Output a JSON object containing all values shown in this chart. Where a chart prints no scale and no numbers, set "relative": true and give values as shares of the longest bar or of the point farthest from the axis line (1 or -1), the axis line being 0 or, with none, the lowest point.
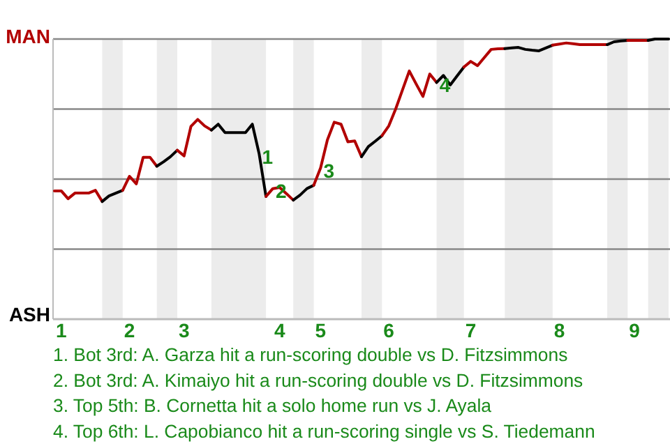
{
  "chart_data": {
    "type": "line",
    "relative": true,
    "grid": "y",
    "categories": [
      null,
      "1",
      null,
      null,
      null,
      null,
      null,
      null,
      null,
      null,
      null,
      "2",
      null,
      null,
      null,
      null,
      null,
      null,
      null,
      "3",
      null,
      null,
      null,
      null,
      null,
      null,
      null,
      null,
      null,
      null,
      null,
      null,
      null,
      "4",
      null,
      null,
      null,
      null,
      null,
      "5",
      null,
      null,
      null,
      null,
      null,
      null,
      null,
      null,
      null,
      "6",
      null,
      null,
      null,
      null,
      null,
      null,
      null,
      null,
      null,
      null,
      null,
      "7",
      null,
      null,
      null,
      null,
      null,
      null,
      null,
      null,
      null,
      null,
      null,
      null,
      "8",
      null,
      null,
      null,
      null,
      null,
      null,
      null,
      null,
      null,
      null,
      "9",
      null,
      null,
      null,
      null,
      null
    ],
    "series": [
      {
        "color": "#b20000",
        "values": [
          0.458,
          0.458,
          0.43,
          0.45,
          0.45,
          0.45,
          0.46,
          0.42,
          null,
          null,
          null,
          null,
          null,
          null,
          null,
          null,
          null,
          null,
          null,
          null,
          null,
          null,
          null,
          null,
          null,
          null,
          null,
          null,
          null,
          null,
          null,
          null,
          null,
          null,
          null,
          null,
          null,
          null,
          null,
          null,
          null,
          null,
          null,
          null,
          null,
          null,
          null,
          null,
          null,
          null,
          null,
          null,
          null,
          null,
          null,
          null,
          null,
          null,
          null,
          null,
          null,
          null,
          null,
          null,
          null,
          null,
          null,
          null,
          null,
          null,
          null,
          null,
          null,
          null,
          null,
          null,
          null,
          null,
          null,
          null,
          null,
          null,
          null,
          null,
          null,
          null,
          null,
          null,
          null,
          null,
          null
        ]
      },
      {
        "color": "#000000",
        "values": [
          null,
          null,
          null,
          null,
          null,
          null,
          null,
          0.42,
          0.44,
          0.45,
          0.46,
          null,
          null,
          null,
          null,
          null,
          null,
          null,
          null,
          null,
          null,
          null,
          null,
          null,
          null,
          null,
          null,
          null,
          null,
          null,
          null,
          null,
          null,
          null,
          null,
          null,
          null,
          null,
          null,
          null,
          null,
          null,
          null,
          null,
          null,
          null,
          null,
          null,
          null,
          null,
          null,
          null,
          null,
          null,
          null,
          null,
          null,
          null,
          null,
          null,
          null,
          null,
          null,
          null,
          null,
          null,
          null,
          null,
          null,
          null,
          null,
          null,
          null,
          null,
          null,
          null,
          null,
          null,
          null,
          null,
          null,
          null,
          null,
          null,
          null,
          null,
          null,
          null,
          null,
          null,
          null
        ]
      },
      {
        "color": "#b20000",
        "values": [
          null,
          null,
          null,
          null,
          null,
          null,
          null,
          null,
          null,
          null,
          0.46,
          0.51,
          0.483,
          0.578,
          0.578,
          0.546,
          null,
          null,
          null,
          null,
          null,
          null,
          null,
          null,
          null,
          null,
          null,
          null,
          null,
          null,
          null,
          null,
          null,
          null,
          null,
          null,
          null,
          null,
          null,
          null,
          null,
          null,
          null,
          null,
          null,
          null,
          null,
          null,
          null,
          null,
          null,
          null,
          null,
          null,
          null,
          null,
          null,
          null,
          null,
          null,
          null,
          null,
          null,
          null,
          null,
          null,
          null,
          null,
          null,
          null,
          null,
          null,
          null,
          null,
          null,
          null,
          null,
          null,
          null,
          null,
          null,
          null,
          null,
          null,
          null,
          null,
          null,
          null,
          null,
          null,
          null
        ]
      },
      {
        "color": "#000000",
        "values": [
          null,
          null,
          null,
          null,
          null,
          null,
          null,
          null,
          null,
          null,
          null,
          null,
          null,
          null,
          null,
          0.546,
          0.562,
          0.58,
          0.603,
          null,
          null,
          null,
          null,
          null,
          null,
          null,
          null,
          null,
          null,
          null,
          null,
          null,
          null,
          null,
          null,
          null,
          null,
          null,
          null,
          null,
          null,
          null,
          null,
          null,
          null,
          null,
          null,
          null,
          null,
          null,
          null,
          null,
          null,
          null,
          null,
          null,
          null,
          null,
          null,
          null,
          null,
          null,
          null,
          null,
          null,
          null,
          null,
          null,
          null,
          null,
          null,
          null,
          null,
          null,
          null,
          null,
          null,
          null,
          null,
          null,
          null,
          null,
          null,
          null,
          null,
          null,
          null,
          null,
          null,
          null,
          null
        ]
      },
      {
        "color": "#b20000",
        "values": [
          null,
          null,
          null,
          null,
          null,
          null,
          null,
          null,
          null,
          null,
          null,
          null,
          null,
          null,
          null,
          null,
          null,
          null,
          0.603,
          0.583,
          0.688,
          0.713,
          0.69,
          0.675,
          null,
          null,
          null,
          null,
          null,
          null,
          null,
          null,
          null,
          null,
          null,
          null,
          null,
          null,
          null,
          null,
          null,
          null,
          null,
          null,
          null,
          null,
          null,
          null,
          null,
          null,
          null,
          null,
          null,
          null,
          null,
          null,
          null,
          null,
          null,
          null,
          null,
          null,
          null,
          null,
          null,
          null,
          null,
          null,
          null,
          null,
          null,
          null,
          null,
          null,
          null,
          null,
          null,
          null,
          null,
          null,
          null,
          null,
          null,
          null,
          null,
          null,
          null,
          null,
          null,
          null,
          null
        ]
      },
      {
        "color": "#000000",
        "values": [
          null,
          null,
          null,
          null,
          null,
          null,
          null,
          null,
          null,
          null,
          null,
          null,
          null,
          null,
          null,
          null,
          null,
          null,
          null,
          null,
          null,
          null,
          null,
          0.675,
          0.696,
          0.666,
          0.666,
          0.666,
          0.666,
          0.696,
          0.59,
          0.438,
          null,
          null,
          null,
          null,
          null,
          null,
          null,
          null,
          null,
          null,
          null,
          null,
          null,
          null,
          null,
          null,
          null,
          null,
          null,
          null,
          null,
          null,
          null,
          null,
          null,
          null,
          null,
          null,
          null,
          null,
          null,
          null,
          null,
          null,
          null,
          null,
          null,
          null,
          null,
          null,
          null,
          null,
          null,
          null,
          null,
          null,
          null,
          null,
          null,
          null,
          null,
          null,
          null,
          null,
          null,
          null,
          null,
          null,
          null
        ]
      },
      {
        "color": "#b20000",
        "values": [
          null,
          null,
          null,
          null,
          null,
          null,
          null,
          null,
          null,
          null,
          null,
          null,
          null,
          null,
          null,
          null,
          null,
          null,
          null,
          null,
          null,
          null,
          null,
          null,
          null,
          null,
          null,
          null,
          null,
          null,
          null,
          0.438,
          0.466,
          0.47,
          0.448,
          0.425,
          null,
          null,
          null,
          null,
          null,
          null,
          null,
          null,
          null,
          null,
          null,
          null,
          null,
          null,
          null,
          null,
          null,
          null,
          null,
          null,
          null,
          null,
          null,
          null,
          null,
          null,
          null,
          null,
          null,
          null,
          null,
          null,
          null,
          null,
          null,
          null,
          null,
          null,
          null,
          null,
          null,
          null,
          null,
          null,
          null,
          null,
          null,
          null,
          null,
          null,
          null,
          null,
          null,
          null,
          null
        ]
      },
      {
        "color": "#000000",
        "values": [
          null,
          null,
          null,
          null,
          null,
          null,
          null,
          null,
          null,
          null,
          null,
          null,
          null,
          null,
          null,
          null,
          null,
          null,
          null,
          null,
          null,
          null,
          null,
          null,
          null,
          null,
          null,
          null,
          null,
          null,
          null,
          null,
          null,
          null,
          null,
          0.425,
          0.443,
          0.466,
          0.478,
          null,
          null,
          null,
          null,
          null,
          null,
          null,
          null,
          null,
          null,
          null,
          null,
          null,
          null,
          null,
          null,
          null,
          null,
          null,
          null,
          null,
          null,
          null,
          null,
          null,
          null,
          null,
          null,
          null,
          null,
          null,
          null,
          null,
          null,
          null,
          null,
          null,
          null,
          null,
          null,
          null,
          null,
          null,
          null,
          null,
          null,
          null,
          null,
          null,
          null,
          null,
          null
        ]
      },
      {
        "color": "#b20000",
        "values": [
          null,
          null,
          null,
          null,
          null,
          null,
          null,
          null,
          null,
          null,
          null,
          null,
          null,
          null,
          null,
          null,
          null,
          null,
          null,
          null,
          null,
          null,
          null,
          null,
          null,
          null,
          null,
          null,
          null,
          null,
          null,
          null,
          null,
          null,
          null,
          null,
          null,
          null,
          0.478,
          0.54,
          0.64,
          0.703,
          0.696,
          0.633,
          0.636,
          0.58,
          null,
          null,
          null,
          null,
          null,
          null,
          null,
          null,
          null,
          null,
          null,
          null,
          null,
          null,
          null,
          null,
          null,
          null,
          null,
          null,
          null,
          null,
          null,
          null,
          null,
          null,
          null,
          null,
          null,
          null,
          null,
          null,
          null,
          null,
          null,
          null,
          null,
          null,
          null,
          null,
          null,
          null,
          null,
          null,
          null
        ]
      },
      {
        "color": "#000000",
        "values": [
          null,
          null,
          null,
          null,
          null,
          null,
          null,
          null,
          null,
          null,
          null,
          null,
          null,
          null,
          null,
          null,
          null,
          null,
          null,
          null,
          null,
          null,
          null,
          null,
          null,
          null,
          null,
          null,
          null,
          null,
          null,
          null,
          null,
          null,
          null,
          null,
          null,
          null,
          null,
          null,
          null,
          null,
          null,
          null,
          null,
          0.58,
          0.616,
          0.635,
          0.655,
          null,
          null,
          null,
          null,
          null,
          null,
          null,
          null,
          null,
          null,
          null,
          null,
          null,
          null,
          null,
          null,
          null,
          null,
          null,
          null,
          null,
          null,
          null,
          null,
          null,
          null,
          null,
          null,
          null,
          null,
          null,
          null,
          null,
          null,
          null,
          null,
          null,
          null,
          null,
          null,
          null,
          null
        ]
      },
      {
        "color": "#b20000",
        "values": [
          null,
          null,
          null,
          null,
          null,
          null,
          null,
          null,
          null,
          null,
          null,
          null,
          null,
          null,
          null,
          null,
          null,
          null,
          null,
          null,
          null,
          null,
          null,
          null,
          null,
          null,
          null,
          null,
          null,
          null,
          null,
          null,
          null,
          null,
          null,
          null,
          null,
          null,
          null,
          null,
          null,
          null,
          null,
          null,
          null,
          null,
          null,
          null,
          0.655,
          0.69,
          0.75,
          0.818,
          0.886,
          0.84,
          0.795,
          0.875,
          0.845,
          null,
          null,
          null,
          null,
          null,
          null,
          null,
          null,
          null,
          null,
          null,
          null,
          null,
          null,
          null,
          null,
          null,
          null,
          null,
          null,
          null,
          null,
          null,
          null,
          null,
          null,
          null,
          null,
          null,
          null,
          null,
          null,
          null,
          null
        ]
      },
      {
        "color": "#000000",
        "values": [
          null,
          null,
          null,
          null,
          null,
          null,
          null,
          null,
          null,
          null,
          null,
          null,
          null,
          null,
          null,
          null,
          null,
          null,
          null,
          null,
          null,
          null,
          null,
          null,
          null,
          null,
          null,
          null,
          null,
          null,
          null,
          null,
          null,
          null,
          null,
          null,
          null,
          null,
          null,
          null,
          null,
          null,
          null,
          null,
          null,
          null,
          null,
          null,
          null,
          null,
          null,
          null,
          null,
          null,
          null,
          null,
          0.845,
          0.87,
          0.836,
          0.868,
          0.9,
          null,
          null,
          null,
          null,
          null,
          null,
          null,
          null,
          null,
          null,
          null,
          null,
          null,
          null,
          null,
          null,
          null,
          null,
          null,
          null,
          null,
          null,
          null,
          null,
          null,
          null,
          null,
          null,
          null,
          null
        ]
      },
      {
        "color": "#b20000",
        "values": [
          null,
          null,
          null,
          null,
          null,
          null,
          null,
          null,
          null,
          null,
          null,
          null,
          null,
          null,
          null,
          null,
          null,
          null,
          null,
          null,
          null,
          null,
          null,
          null,
          null,
          null,
          null,
          null,
          null,
          null,
          null,
          null,
          null,
          null,
          null,
          null,
          null,
          null,
          null,
          null,
          null,
          null,
          null,
          null,
          null,
          null,
          null,
          null,
          null,
          null,
          null,
          null,
          null,
          null,
          null,
          null,
          null,
          null,
          null,
          null,
          0.9,
          0.92,
          0.905,
          0.934,
          0.963,
          0.965,
          0.966,
          null,
          null,
          null,
          null,
          null,
          null,
          null,
          null,
          null,
          null,
          null,
          null,
          null,
          null,
          null,
          null,
          null,
          null,
          null,
          null,
          null,
          null,
          null,
          null
        ]
      },
      {
        "color": "#000000",
        "values": [
          null,
          null,
          null,
          null,
          null,
          null,
          null,
          null,
          null,
          null,
          null,
          null,
          null,
          null,
          null,
          null,
          null,
          null,
          null,
          null,
          null,
          null,
          null,
          null,
          null,
          null,
          null,
          null,
          null,
          null,
          null,
          null,
          null,
          null,
          null,
          null,
          null,
          null,
          null,
          null,
          null,
          null,
          null,
          null,
          null,
          null,
          null,
          null,
          null,
          null,
          null,
          null,
          null,
          null,
          null,
          null,
          null,
          null,
          null,
          null,
          null,
          null,
          null,
          null,
          null,
          null,
          0.966,
          0.968,
          0.97,
          0.963,
          0.96,
          0.958,
          0.968,
          0.978,
          null,
          null,
          null,
          null,
          null,
          null,
          null,
          null,
          null,
          null,
          null,
          null,
          null,
          null,
          null,
          null,
          null
        ]
      },
      {
        "color": "#b20000",
        "values": [
          null,
          null,
          null,
          null,
          null,
          null,
          null,
          null,
          null,
          null,
          null,
          null,
          null,
          null,
          null,
          null,
          null,
          null,
          null,
          null,
          null,
          null,
          null,
          null,
          null,
          null,
          null,
          null,
          null,
          null,
          null,
          null,
          null,
          null,
          null,
          null,
          null,
          null,
          null,
          null,
          null,
          null,
          null,
          null,
          null,
          null,
          null,
          null,
          null,
          null,
          null,
          null,
          null,
          null,
          null,
          null,
          null,
          null,
          null,
          null,
          null,
          null,
          null,
          null,
          null,
          null,
          null,
          null,
          null,
          null,
          null,
          null,
          null,
          0.978,
          0.982,
          0.986,
          0.983,
          0.98,
          0.98,
          0.98,
          0.98,
          0.98,
          null,
          null,
          null,
          null,
          null,
          null,
          null,
          null,
          null
        ]
      },
      {
        "color": "#000000",
        "values": [
          null,
          null,
          null,
          null,
          null,
          null,
          null,
          null,
          null,
          null,
          null,
          null,
          null,
          null,
          null,
          null,
          null,
          null,
          null,
          null,
          null,
          null,
          null,
          null,
          null,
          null,
          null,
          null,
          null,
          null,
          null,
          null,
          null,
          null,
          null,
          null,
          null,
          null,
          null,
          null,
          null,
          null,
          null,
          null,
          null,
          null,
          null,
          null,
          null,
          null,
          null,
          null,
          null,
          null,
          null,
          null,
          null,
          null,
          null,
          null,
          null,
          null,
          null,
          null,
          null,
          null,
          null,
          null,
          null,
          null,
          null,
          null,
          null,
          null,
          null,
          null,
          null,
          null,
          null,
          null,
          null,
          0.98,
          0.99,
          0.993,
          0.995,
          null,
          null,
          null,
          null,
          null,
          null
        ]
      },
      {
        "color": "#b20000",
        "values": [
          null,
          null,
          null,
          null,
          null,
          null,
          null,
          null,
          null,
          null,
          null,
          null,
          null,
          null,
          null,
          null,
          null,
          null,
          null,
          null,
          null,
          null,
          null,
          null,
          null,
          null,
          null,
          null,
          null,
          null,
          null,
          null,
          null,
          null,
          null,
          null,
          null,
          null,
          null,
          null,
          null,
          null,
          null,
          null,
          null,
          null,
          null,
          null,
          null,
          null,
          null,
          null,
          null,
          null,
          null,
          null,
          null,
          null,
          null,
          null,
          null,
          null,
          null,
          null,
          null,
          null,
          null,
          null,
          null,
          null,
          null,
          null,
          null,
          null,
          null,
          null,
          null,
          null,
          null,
          null,
          null,
          null,
          null,
          null,
          0.995,
          0.995,
          0.995,
          0.995,
          null,
          null,
          null
        ]
      },
      {
        "color": "#000000",
        "values": [
          null,
          null,
          null,
          null,
          null,
          null,
          null,
          null,
          null,
          null,
          null,
          null,
          null,
          null,
          null,
          null,
          null,
          null,
          null,
          null,
          null,
          null,
          null,
          null,
          null,
          null,
          null,
          null,
          null,
          null,
          null,
          null,
          null,
          null,
          null,
          null,
          null,
          null,
          null,
          null,
          null,
          null,
          null,
          null,
          null,
          null,
          null,
          null,
          null,
          null,
          null,
          null,
          null,
          null,
          null,
          null,
          null,
          null,
          null,
          null,
          null,
          null,
          null,
          null,
          null,
          null,
          null,
          null,
          null,
          null,
          null,
          null,
          null,
          null,
          null,
          null,
          null,
          null,
          null,
          null,
          null,
          null,
          null,
          null,
          null,
          null,
          null,
          0.995,
          1,
          1,
          1
        ]
      }
    ],
    "annotations": [
      "MAN",
      "ASH",
      {
        "text": "1",
        "y": 0.59
      },
      {
        "text": "2",
        "y": 0.466
      },
      {
        "text": "3",
        "y": 0.54
      },
      {
        "text": "4",
        "y": 0.845
      },
      "1. Bot 3rd: A. Garza hit a run-scoring double vs D. Fitzsimmons",
      "2. Bot 3rd: A. Kimaiyo hit a run-scoring double vs D. Fitzsimmons",
      "3. Top 5th: B. Cornetta hit a solo home run vs J. Ayala",
      "4. Top 6th: L. Capobianco hit a run-scoring single vs S. Tiedemann"
    ]
  }
}
